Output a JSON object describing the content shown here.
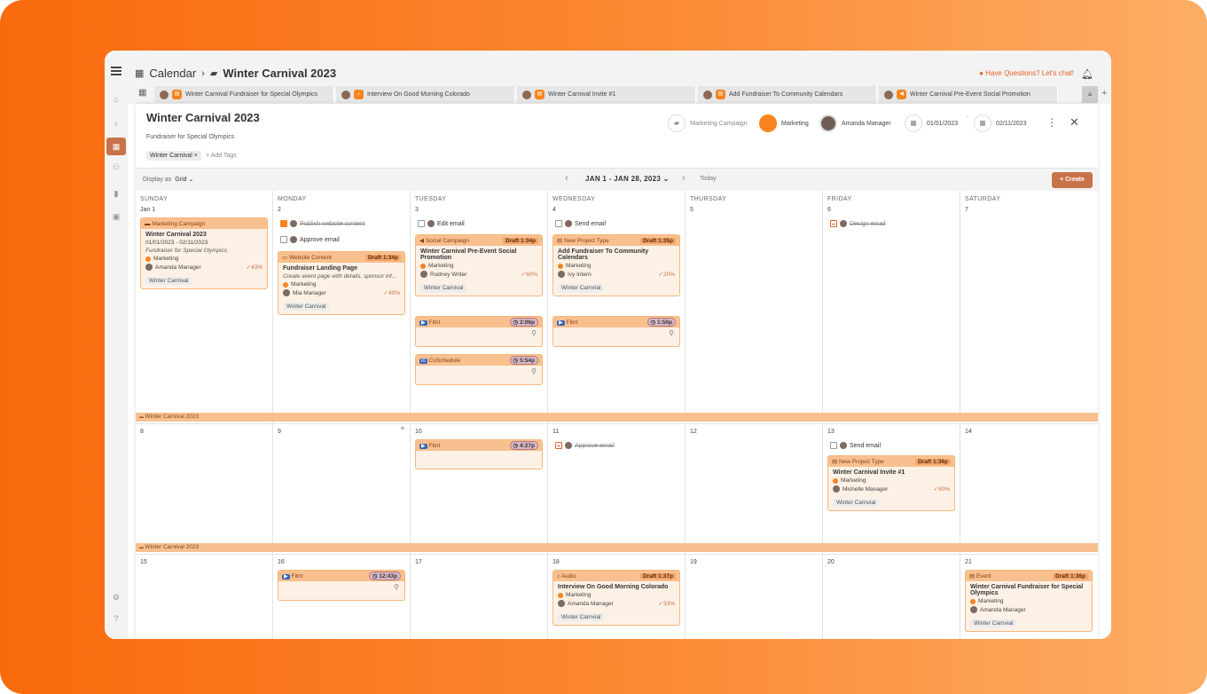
{
  "header": {
    "calendar_label": "Calendar",
    "project_title": "Winter Carnival 2023",
    "chat_label": "Have Questions? Let's chat!"
  },
  "tabs": [
    {
      "label": "Winter Carnival Fundraiser for Special Olympics"
    },
    {
      "label": "Interview On Good Morning Colorado"
    },
    {
      "label": "Winter Carnival Invite #1"
    },
    {
      "label": "Add Fundraiser To Community Calendars"
    },
    {
      "label": "Winter Carnival Pre-Event Social Promotion"
    }
  ],
  "panel": {
    "title": "Winter Carnival 2023",
    "subtitle": "Fundraiser for Special Olympics",
    "tag": "Winter Carnival ×",
    "add_tags": "+ Add Tags",
    "type": "Marketing Campaign",
    "team": "Marketing",
    "owner": "Amanda Manager",
    "start_date": "01/01/2023",
    "end_date": "02/11/2023",
    "date_sep": "-"
  },
  "toolbar": {
    "display_label": "Display as",
    "display_value": "Grid ⌄",
    "range": "JAN 1 - JAN 28, 2023 ⌄",
    "today": "Today",
    "create": "+ Create"
  },
  "days": [
    "SUNDAY",
    "MONDAY",
    "TUESDAY",
    "WEDNESDAY",
    "THURSDAY",
    "FRIDAY",
    "SATURDAY"
  ],
  "weeks": [
    [
      "Jan 1",
      "2",
      "3",
      "4",
      "5",
      "6",
      "7"
    ],
    [
      "8",
      "9",
      "10",
      "11",
      "12",
      "13",
      "14"
    ],
    [
      "15",
      "16",
      "17",
      "18",
      "19",
      "20",
      "21"
    ]
  ],
  "campaign_bar": "Winter Carnival 2023",
  "tasks": {
    "mon_publish": "Publish website content",
    "mon_approve": "Approve email",
    "tue_edit": "Edit email",
    "wed_send": "Send email",
    "fri_design": "Design email",
    "w2_wed_approve": "Approve email",
    "w2_fri_send": "Send email"
  },
  "cards": {
    "sun_campaign": {
      "head": "Marketing Campaign",
      "title": "Winter Carnival 2023",
      "dates": "01/01/2023 - 02/11/2023",
      "desc": "Fundraiser for Special Olympics",
      "team": "Marketing",
      "owner": "Amanda Manager",
      "pct": "✓43%",
      "tag": "Winter Carnival"
    },
    "mon_web": {
      "head": "Website Content",
      "status": "Draft 1:34p",
      "title": "Fundraiser Landing Page",
      "desc": "Create event page with details, sponsor inf...",
      "team": "Marketing",
      "owner": "Mia Manager",
      "pct": "✓40%",
      "tag": "Winter Carnival"
    },
    "tue_social": {
      "head": "Social Campaign",
      "status": "Draft 1:34p",
      "title": "Winter Carnival Pre-Event Social Promotion",
      "team": "Marketing",
      "owner": "Rodney Writer",
      "pct": "✓60%",
      "tag": "Winter Carnival"
    },
    "tue_fitnt": {
      "head": "Fitnt",
      "time": "2:06p"
    },
    "tue_cosched": {
      "head": "CoSchedule",
      "time": "5:54p"
    },
    "wed_project": {
      "head": "New Project Type",
      "status": "Draft 1:35p",
      "title": "Add Fundraiser To Community Calendars",
      "team": "Marketing",
      "owner": "Ivy Intern",
      "pct": "✓20%",
      "tag": "Winter Carnvial"
    },
    "wed_fitnt": {
      "head": "Fitnt",
      "time": "1:50p"
    },
    "w2_tue_fitnt": {
      "head": "Fitnt",
      "time": "4:27p"
    },
    "w2_fri_project": {
      "head": "New Project Type",
      "status": "Draft 1:36p",
      "title": "Winter Carnival Invite #1",
      "team": "Marketing",
      "owner": "Michelle Manager",
      "pct": "✓90%",
      "tag": "Winter Carnvial"
    },
    "w3_mon_fitnt": {
      "head": "Fitnt",
      "time": "12:43p"
    },
    "w3_wed_audio": {
      "head": "Audio",
      "status": "Draft 1:37p",
      "title": "Interview On Good Morning Colorado",
      "team": "Marketing",
      "owner": "Amanda Manager",
      "pct": "✓33%",
      "tag": "Winter Carnvial"
    },
    "w3_sat_event": {
      "head": "Event",
      "status": "Draft 1:36p",
      "title": "Winter Carnival Fundraiser for Special Olympics",
      "team": "Marketing",
      "owner": "Amanda Manager",
      "tag": "Winter Carnvial"
    }
  }
}
